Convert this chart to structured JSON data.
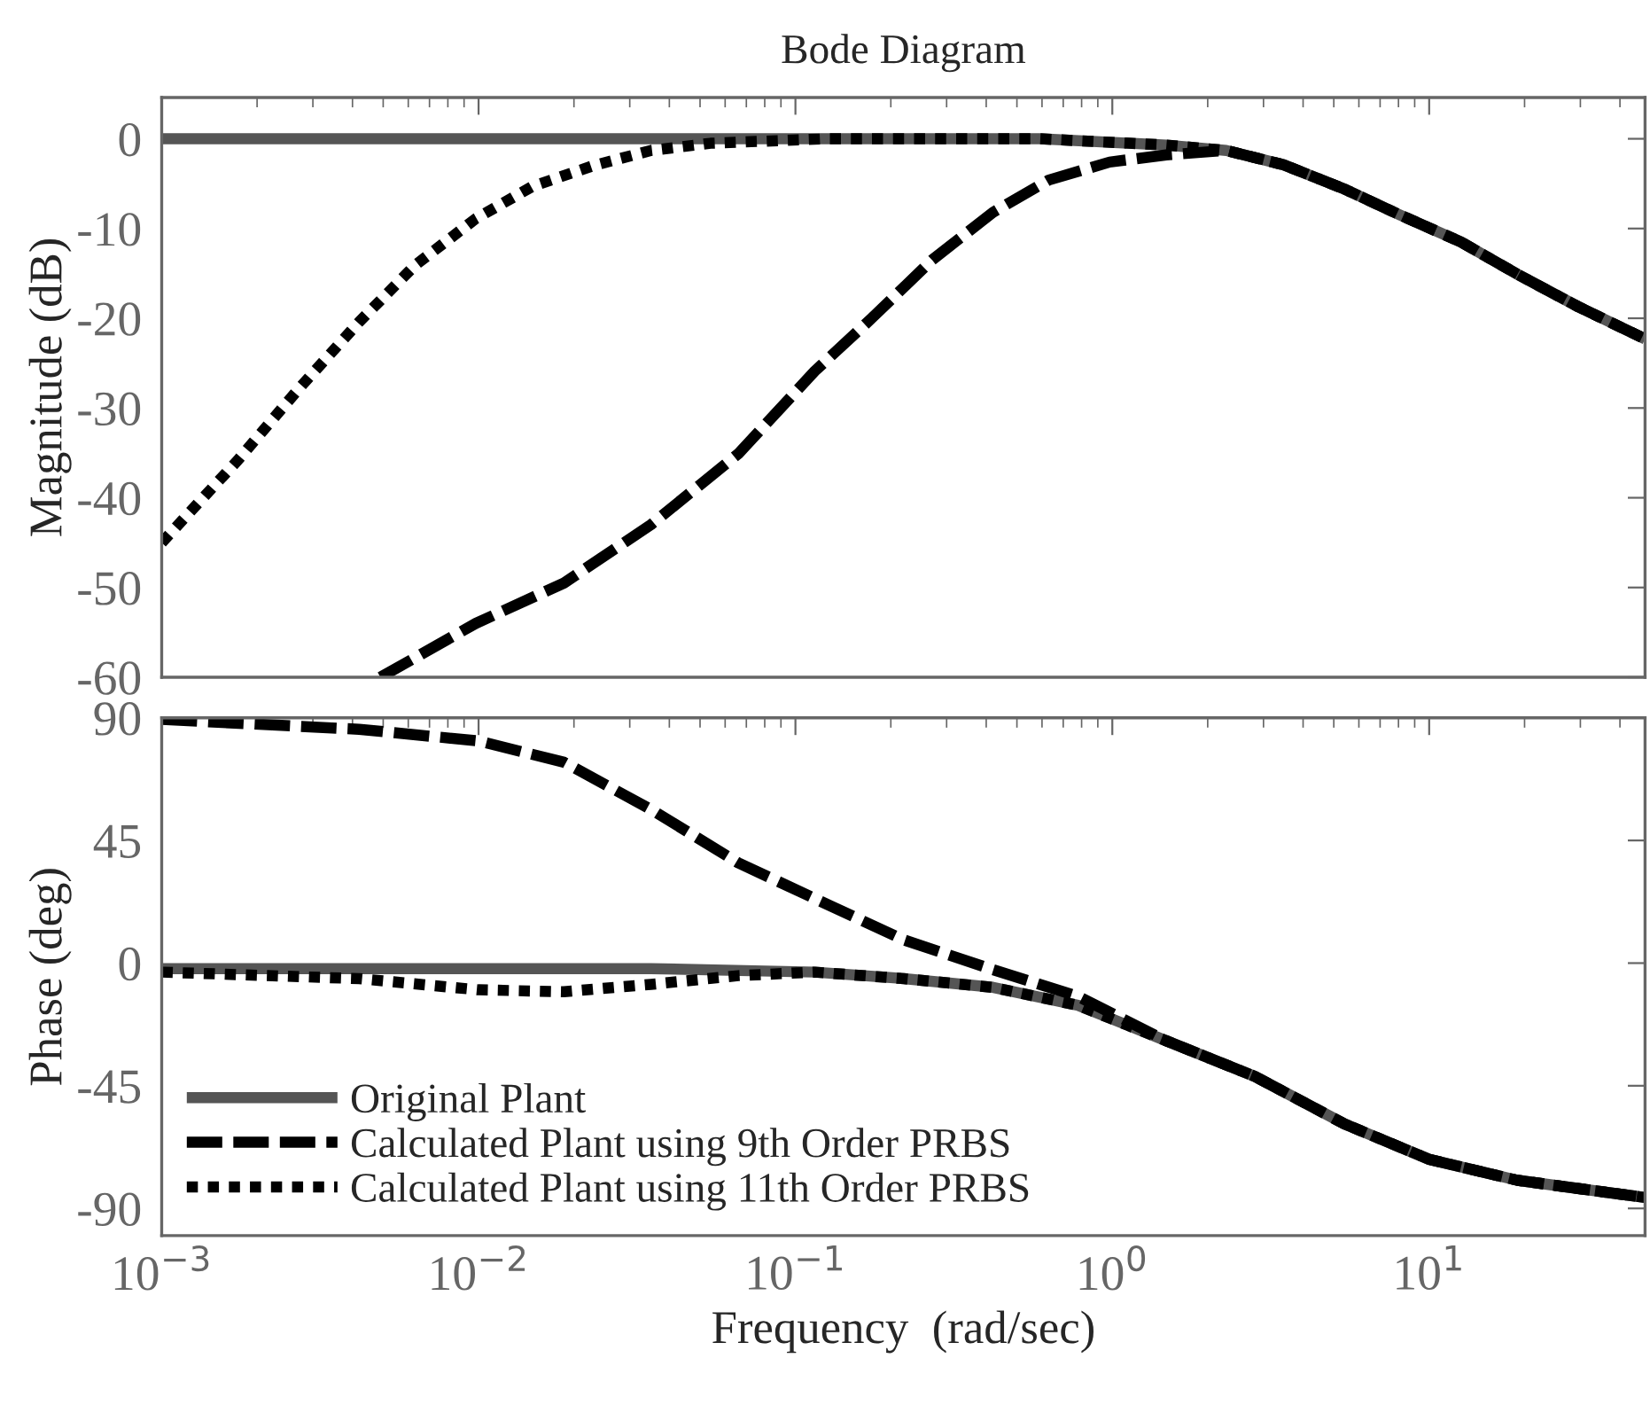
{
  "chart_data": [
    {
      "type": "line",
      "title": "Bode Diagram",
      "ylabel": "Magnitude (dB)",
      "log": "x",
      "tick_labels": "y",
      "xlim": [
        0.001,
        48
      ],
      "xticks": [
        {
          "value": 0.001,
          "label": null
        },
        {
          "value": 0.01,
          "label": null
        },
        {
          "value": 0.1,
          "label": null
        },
        {
          "value": 1,
          "label": null
        },
        {
          "value": 10,
          "label": null
        }
      ],
      "ylim": [
        -60,
        4.6
      ],
      "yticks": [
        -60,
        -50,
        -40,
        -30,
        -20,
        -10,
        0
      ],
      "series": [
        {
          "color": "#555555",
          "line_style": "solid",
          "x": [
            0.001,
            0.59,
            1.48,
            2.29,
            3.47,
            5.4,
            8.1,
            12.6,
            19,
            29.5,
            48
          ],
          "values": [
            0,
            0,
            -0.7,
            -1.3,
            -2.9,
            -5.6,
            -8.5,
            -11.5,
            -15.1,
            -18.7,
            -22.3
          ]
        },
        {
          "color": "#000000",
          "line_style": "dashed",
          "x": [
            0.0049,
            0.0098,
            0.0186,
            0.035,
            0.066,
            0.115,
            0.174,
            0.27,
            0.42,
            0.63,
            0.98,
            1.48,
            2.29,
            3.47,
            5.4,
            8.1,
            12.6,
            19,
            29.5,
            48
          ],
          "values": [
            -60,
            -54,
            -49.5,
            -43,
            -35.1,
            -25.9,
            -20,
            -13.5,
            -8.2,
            -4.6,
            -2.6,
            -1.8,
            -1.3,
            -2.9,
            -5.6,
            -8.5,
            -11.5,
            -15.1,
            -18.7,
            -22.3
          ]
        },
        {
          "color": "#000000",
          "line_style": "dotted",
          "x": [
            0.001,
            0.00174,
            0.0027,
            0.0042,
            0.0063,
            0.0098,
            0.0148,
            0.023,
            0.035,
            0.054,
            0.126,
            0.59,
            1.48,
            2.29,
            3.47,
            5.4,
            8.1,
            12.6,
            19,
            29.5,
            48
          ],
          "values": [
            -45,
            -35.8,
            -27.9,
            -20.4,
            -14.1,
            -8.9,
            -5.3,
            -3,
            -1.3,
            -0.5,
            0,
            0,
            -0.7,
            -1.3,
            -2.9,
            -5.6,
            -8.5,
            -11.5,
            -15.1,
            -18.7,
            -22.3
          ]
        }
      ]
    },
    {
      "type": "line",
      "xlabel": "Frequency  (rad/sec)",
      "ylabel": "Phase (deg)",
      "log": "x",
      "legend": "bottom left",
      "xlim": [
        0.001,
        48
      ],
      "xticks": [
        {
          "value": 0.001,
          "label": "10$^{−3}$"
        },
        {
          "value": 0.01,
          "label": "10$^{−2}$"
        },
        {
          "value": 0.1,
          "label": "10$^{−1}$"
        },
        {
          "value": 1,
          "label": "10$^{0}$"
        },
        {
          "value": 10,
          "label": "10$^{1}$"
        }
      ],
      "ylim": [
        -100,
        90
      ],
      "yticks": [
        -90,
        -45,
        0,
        45,
        90
      ],
      "series": [
        {
          "name": "Original Plant",
          "color": "#555555",
          "line_style": "solid",
          "x": [
            0.001,
            0.035,
            0.115,
            0.22,
            0.42,
            0.78,
            1.48,
            2.82,
            5.4,
            10,
            19,
            48
          ],
          "values": [
            -2,
            -2,
            -3.3,
            -5.7,
            -8.9,
            -15.5,
            -28.5,
            -41.6,
            -59,
            -72,
            -79.7,
            -86
          ]
        },
        {
          "name": "Calculated Plant using 9th Order PRBS",
          "color": "#000000",
          "line_style": "dashed",
          "x": [
            0.001,
            0.0042,
            0.01,
            0.0186,
            0.035,
            0.066,
            0.115,
            0.22,
            0.42,
            0.78,
            1.48,
            2.82,
            5.4,
            10,
            19,
            48
          ],
          "values": [
            89.4,
            85.8,
            81.5,
            73.7,
            56.4,
            36.8,
            23.7,
            8.5,
            -2.4,
            -12.2,
            -28.5,
            -41.6,
            -59,
            -72,
            -79.7,
            -86
          ]
        },
        {
          "name": "Calculated Plant using 11th Order PRBS",
          "color": "#000000",
          "line_style": "dotted",
          "x": [
            0.001,
            0.0042,
            0.01,
            0.0186,
            0.035,
            0.066,
            0.115,
            0.22,
            0.42,
            0.78,
            1.48,
            2.82,
            5.4,
            10,
            19,
            48
          ],
          "values": [
            -3.3,
            -5.7,
            -9.8,
            -10.5,
            -7.8,
            -4.6,
            -3.3,
            -5.7,
            -8.9,
            -15.5,
            -28.5,
            -41.6,
            -59,
            -72,
            -79.7,
            -86
          ]
        }
      ]
    }
  ]
}
